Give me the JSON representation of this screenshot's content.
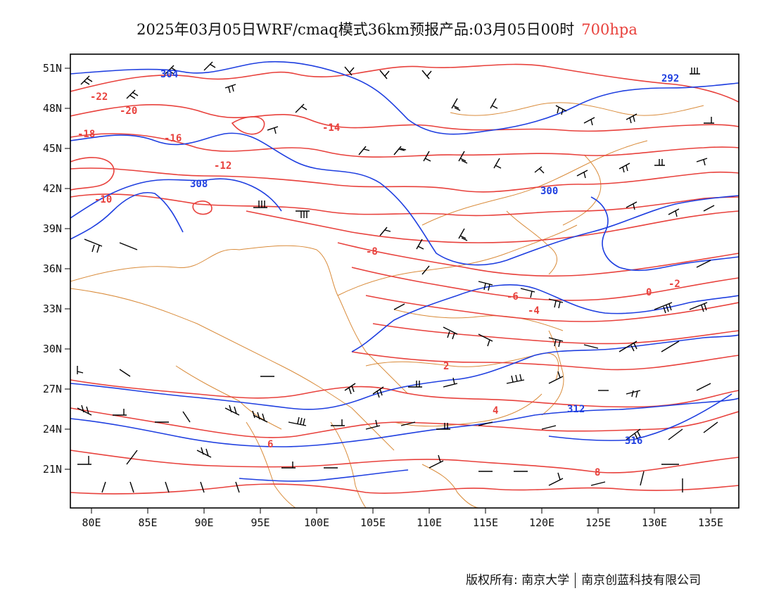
{
  "title": {
    "main": "2025年03月05日WRF/cmaq模式36km预报产品:03月05日00时",
    "level": "700hpa"
  },
  "colors": {
    "temperature": "#e8413c",
    "height": "#1f3fe0",
    "border": "#d98b3a",
    "wind": "#000000"
  },
  "map": {
    "lon_ticks": [
      "80E",
      "85E",
      "90E",
      "95E",
      "100E",
      "105E",
      "110E",
      "115E",
      "120E",
      "125E",
      "130E",
      "135E"
    ],
    "lat_ticks": [
      "51N",
      "48N",
      "45N",
      "42N",
      "39N",
      "36N",
      "33N",
      "30N",
      "27N",
      "24N",
      "21N"
    ],
    "temperature_labels": [
      "-22",
      "-20",
      "-18",
      "-16",
      "-14",
      "-12",
      "-10",
      "-8",
      "-6",
      "-4",
      "-2",
      "0",
      "2",
      "4",
      "6",
      "8"
    ],
    "height_labels": [
      "292",
      "300",
      "304",
      "308",
      "312",
      "316"
    ]
  },
  "footer": {
    "left": "版权所有: 南京大学",
    "right": "南京创蓝科技有限公司"
  }
}
